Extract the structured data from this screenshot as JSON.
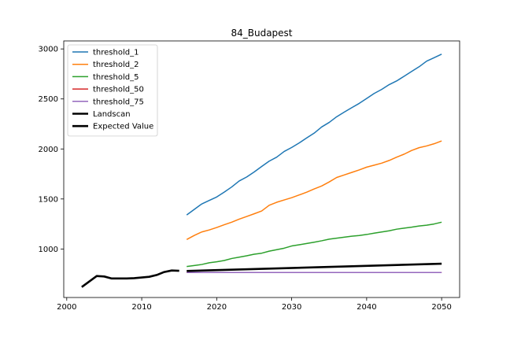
{
  "chart_data": {
    "type": "line",
    "title": "84_Budapest",
    "xlabel": "",
    "ylabel": "",
    "xlim": [
      1999.6,
      2052.4
    ],
    "ylim": [
      515,
      3080
    ],
    "xticks": [
      2000,
      2010,
      2020,
      2030,
      2040,
      2050
    ],
    "yticks": [
      1000,
      1500,
      2000,
      2500,
      3000
    ],
    "grid": false,
    "legend": {
      "placement": "top-left"
    },
    "series": [
      {
        "name": "threshold_1",
        "color": "#1f77b4",
        "width": 1.5,
        "x": [
          2016,
          2017,
          2018,
          2019,
          2020,
          2021,
          2022,
          2023,
          2024,
          2025,
          2026,
          2027,
          2028,
          2029,
          2030,
          2031,
          2032,
          2033,
          2034,
          2035,
          2036,
          2037,
          2038,
          2039,
          2040,
          2041,
          2042,
          2043,
          2044,
          2045,
          2046,
          2047,
          2048,
          2049,
          2050
        ],
        "y": [
          1340,
          1395,
          1450,
          1485,
          1520,
          1568,
          1620,
          1680,
          1720,
          1770,
          1825,
          1878,
          1918,
          1975,
          2015,
          2060,
          2110,
          2158,
          2220,
          2265,
          2322,
          2368,
          2412,
          2455,
          2505,
          2555,
          2595,
          2643,
          2680,
          2727,
          2775,
          2822,
          2878,
          2912,
          2948
        ]
      },
      {
        "name": "threshold_2",
        "color": "#ff7f0e",
        "width": 1.5,
        "x": [
          2016,
          2017,
          2018,
          2019,
          2020,
          2021,
          2022,
          2023,
          2024,
          2025,
          2026,
          2027,
          2028,
          2029,
          2030,
          2031,
          2032,
          2033,
          2034,
          2035,
          2036,
          2037,
          2038,
          2039,
          2040,
          2041,
          2042,
          2043,
          2044,
          2045,
          2046,
          2047,
          2048,
          2049,
          2050
        ],
        "y": [
          1095,
          1135,
          1170,
          1190,
          1215,
          1242,
          1268,
          1298,
          1325,
          1352,
          1380,
          1437,
          1467,
          1490,
          1513,
          1540,
          1568,
          1600,
          1630,
          1670,
          1715,
          1740,
          1765,
          1790,
          1818,
          1838,
          1858,
          1885,
          1918,
          1948,
          1985,
          2013,
          2030,
          2052,
          2080
        ]
      },
      {
        "name": "threshold_5",
        "color": "#2ca02c",
        "width": 1.5,
        "x": [
          2016,
          2017,
          2018,
          2019,
          2020,
          2021,
          2022,
          2023,
          2024,
          2025,
          2026,
          2027,
          2028,
          2029,
          2030,
          2031,
          2032,
          2033,
          2034,
          2035,
          2036,
          2037,
          2038,
          2039,
          2040,
          2041,
          2042,
          2043,
          2044,
          2045,
          2046,
          2047,
          2048,
          2049,
          2050
        ],
        "y": [
          825,
          835,
          845,
          862,
          872,
          885,
          905,
          918,
          932,
          948,
          958,
          978,
          993,
          1008,
          1030,
          1042,
          1055,
          1068,
          1082,
          1098,
          1108,
          1118,
          1128,
          1135,
          1145,
          1158,
          1170,
          1182,
          1198,
          1208,
          1218,
          1230,
          1238,
          1250,
          1268
        ]
      },
      {
        "name": "threshold_50",
        "color": "#d62728",
        "width": 1.5,
        "x": [
          2016,
          2020,
          2025,
          2030,
          2035,
          2040,
          2045,
          2050
        ],
        "y": [
          765,
          765,
          765,
          765,
          765,
          765,
          765,
          765
        ]
      },
      {
        "name": "threshold_75",
        "color": "#9467bd",
        "width": 1.5,
        "x": [
          2016,
          2020,
          2025,
          2030,
          2035,
          2040,
          2045,
          2050
        ],
        "y": [
          765,
          765,
          765,
          765,
          765,
          765,
          765,
          765
        ]
      },
      {
        "name": "Landscan",
        "color": "#000000",
        "width": 2.6,
        "x": [
          2002,
          2003,
          2004,
          2005,
          2006,
          2007,
          2008,
          2009,
          2010,
          2011,
          2012,
          2013,
          2014,
          2015
        ],
        "y": [
          620,
          675,
          730,
          725,
          705,
          705,
          705,
          708,
          715,
          722,
          740,
          770,
          785,
          782
        ]
      },
      {
        "name": "Expected Value",
        "color": "#000000",
        "width": 2.6,
        "x": [
          2016,
          2050
        ],
        "y": [
          780,
          853
        ]
      }
    ]
  }
}
